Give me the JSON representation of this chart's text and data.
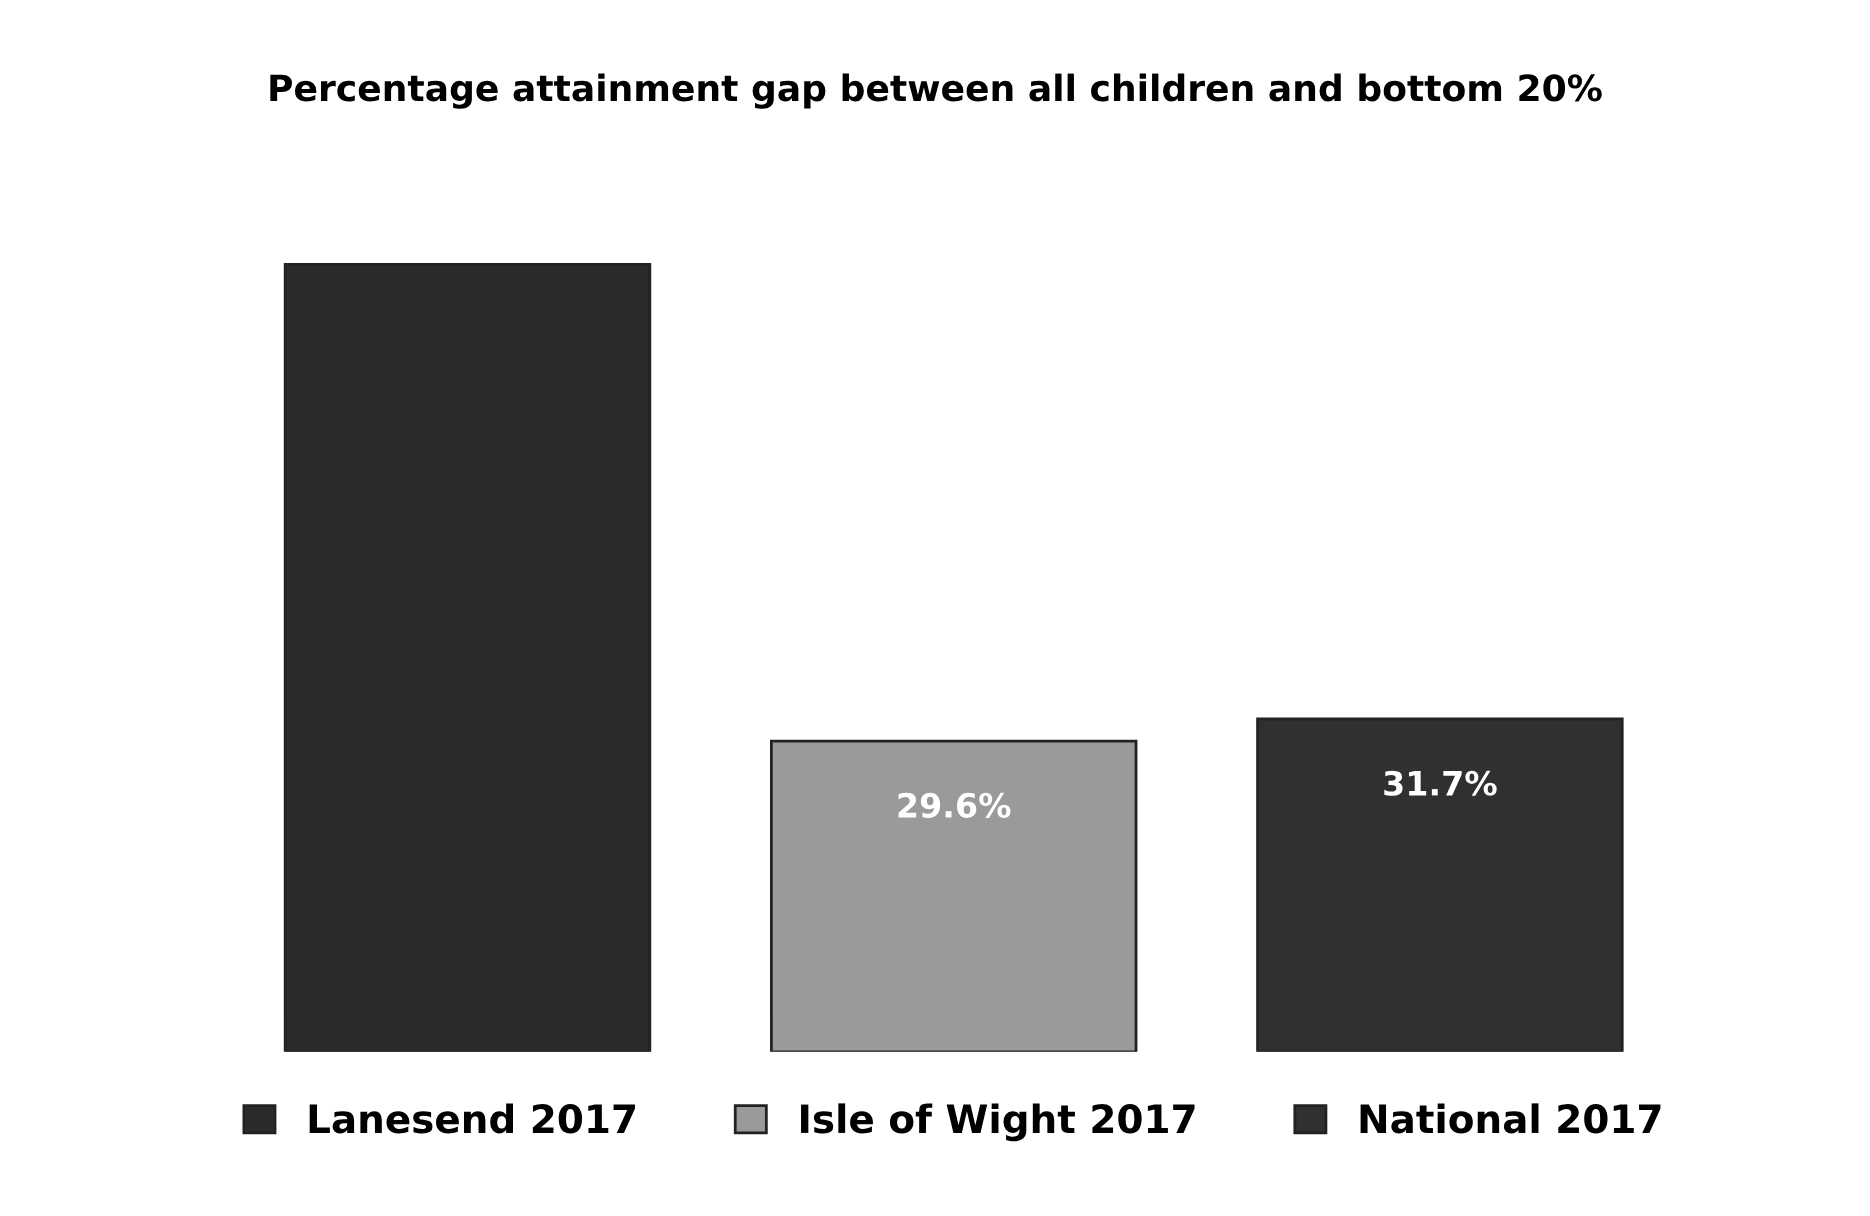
{
  "chart_data": {
    "type": "bar",
    "title": "Percentage attainment gap between all children and bottom 20%",
    "categories": [
      null
    ],
    "series": [
      {
        "name": "Lanesend 2017",
        "color": "#2b2b2b",
        "values": [
          75
        ],
        "value_labels": [
          null
        ]
      },
      {
        "name": "Isle of Wight 2017",
        "color": "#9a9a9a",
        "values": [
          29.6
        ],
        "value_labels": [
          "29.6%"
        ]
      },
      {
        "name": "National 2017",
        "color": "#303030",
        "values": [
          31.7
        ],
        "value_labels": [
          "31.7%"
        ]
      }
    ],
    "tick_labels": false,
    "grid": false,
    "legend": "bottom"
  }
}
